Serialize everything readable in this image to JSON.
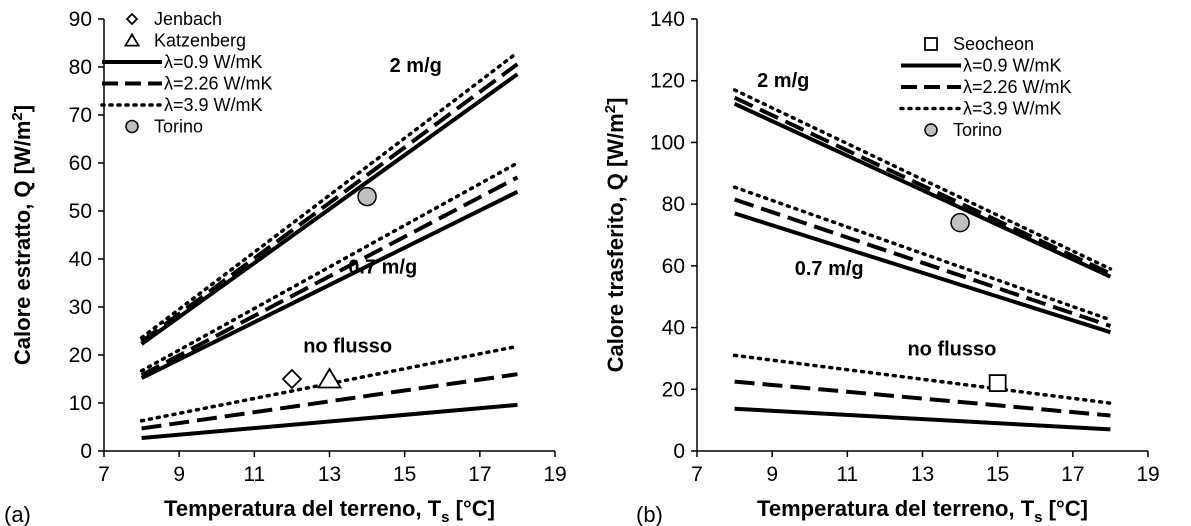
{
  "chart_data": [
    {
      "type": "line",
      "panel_label": "(a)",
      "xlabel": "Temperatura del terreno, T",
      "xlabel_sub": "s",
      "xlabel_unit": " [°C]",
      "ylabel": "Calore estratto, Q [W/m",
      "ylabel_sup": "2",
      "ylabel_end": "]",
      "xlim": [
        7,
        19
      ],
      "ylim": [
        0,
        90
      ],
      "xticks": [
        7,
        9,
        11,
        13,
        15,
        17,
        19
      ],
      "yticks": [
        0,
        10,
        20,
        30,
        40,
        50,
        60,
        70,
        80,
        90
      ],
      "grid": false,
      "legend": {
        "placement": "top-left",
        "entries": [
          {
            "label": "Jenbach",
            "symbol": "diamond"
          },
          {
            "label": "Katzenberg",
            "symbol": "triangle"
          },
          {
            "label": "λ=0.9 W/mK",
            "symbol": "solid"
          },
          {
            "label": "λ=2.26 W/mK",
            "symbol": "dashed"
          },
          {
            "label": "λ=3.9 W/mK",
            "symbol": "dotted"
          },
          {
            "label": "Torino",
            "symbol": "circle"
          }
        ]
      },
      "annotations": [
        {
          "text": "2 m/g",
          "x": 14.6,
          "y": 79
        },
        {
          "text": "0.7 m/g",
          "x": 13.5,
          "y": 37
        },
        {
          "text": "no flusso",
          "x": 12.3,
          "y": 20.5
        }
      ],
      "series": [
        {
          "group": "2 m/g",
          "lambda": "λ=0.9 W/mK",
          "style": "solid",
          "x": [
            8,
            18
          ],
          "y": [
            22.3,
            78.5
          ]
        },
        {
          "group": "2 m/g",
          "lambda": "λ=2.26 W/mK",
          "style": "dashed",
          "x": [
            8,
            18
          ],
          "y": [
            22.8,
            80.6
          ]
        },
        {
          "group": "2 m/g",
          "lambda": "λ=3.9 W/mK",
          "style": "dotted",
          "x": [
            8,
            18
          ],
          "y": [
            23.6,
            83
          ]
        },
        {
          "group": "0.7 m/g",
          "lambda": "λ=0.9 W/mK",
          "style": "solid",
          "x": [
            8,
            18
          ],
          "y": [
            15.2,
            54
          ]
        },
        {
          "group": "0.7 m/g",
          "lambda": "λ=2.26 W/mK",
          "style": "dashed",
          "x": [
            8,
            18
          ],
          "y": [
            15.8,
            57
          ]
        },
        {
          "group": "0.7 m/g",
          "lambda": "λ=3.9 W/mK",
          "style": "dotted",
          "x": [
            8,
            18
          ],
          "y": [
            16.7,
            60
          ]
        },
        {
          "group": "no flusso",
          "lambda": "λ=0.9 W/mK",
          "style": "solid",
          "x": [
            8,
            18
          ],
          "y": [
            2.7,
            9.6
          ]
        },
        {
          "group": "no flusso",
          "lambda": "λ=2.26 W/mK",
          "style": "dashed",
          "x": [
            8,
            18
          ],
          "y": [
            4.7,
            16
          ]
        },
        {
          "group": "no flusso",
          "lambda": "λ=3.9 W/mK",
          "style": "dotted",
          "x": [
            8,
            18
          ],
          "y": [
            6.3,
            21.8
          ]
        }
      ],
      "points": [
        {
          "name": "Jenbach",
          "symbol": "diamond",
          "x": 12,
          "y": 15
        },
        {
          "name": "Katzenberg",
          "symbol": "triangle",
          "x": 13,
          "y": 15
        },
        {
          "name": "Torino",
          "symbol": "circle",
          "x": 14,
          "y": 53
        }
      ]
    },
    {
      "type": "line",
      "panel_label": "(b)",
      "xlabel": "Temperatura del terreno, T",
      "xlabel_sub": "s",
      "xlabel_unit": " [°C]",
      "ylabel": "Calore trasferito, Q [W/m",
      "ylabel_sup": "2",
      "ylabel_end": "]",
      "xlim": [
        7,
        19
      ],
      "ylim": [
        0,
        140
      ],
      "xticks": [
        7,
        9,
        11,
        13,
        15,
        17,
        19
      ],
      "yticks": [
        0,
        20,
        40,
        60,
        80,
        100,
        120,
        140
      ],
      "grid": false,
      "legend": {
        "placement": "top-right",
        "entries": [
          {
            "label": "Seocheon",
            "symbol": "square"
          },
          {
            "label": "λ=0.9 W/mK",
            "symbol": "solid"
          },
          {
            "label": "λ=2.26 W/mK",
            "symbol": "dashed"
          },
          {
            "label": "λ=3.9 W/mK",
            "symbol": "dotted"
          },
          {
            "label": "Torino",
            "symbol": "circle"
          }
        ]
      },
      "annotations": [
        {
          "text": "2 m/g",
          "x": 8.6,
          "y": 118
        },
        {
          "text": "0.7 m/g",
          "x": 9.6,
          "y": 57
        },
        {
          "text": "no flusso",
          "x": 12.6,
          "y": 31
        }
      ],
      "series": [
        {
          "group": "2 m/g",
          "lambda": "λ=0.9 W/mK",
          "style": "solid",
          "x": [
            8,
            18
          ],
          "y": [
            112.5,
            56.5
          ]
        },
        {
          "group": "2 m/g",
          "lambda": "λ=2.26 W/mK",
          "style": "dashed",
          "x": [
            8,
            18
          ],
          "y": [
            114.5,
            57.5
          ]
        },
        {
          "group": "2 m/g",
          "lambda": "λ=3.9 W/mK",
          "style": "dotted",
          "x": [
            8,
            18
          ],
          "y": [
            117,
            59
          ]
        },
        {
          "group": "0.7 m/g",
          "lambda": "λ=0.9 W/mK",
          "style": "solid",
          "x": [
            8,
            18
          ],
          "y": [
            77,
            38.5
          ]
        },
        {
          "group": "0.7 m/g",
          "lambda": "λ=2.26 W/mK",
          "style": "dashed",
          "x": [
            8,
            18
          ],
          "y": [
            81.5,
            40.5
          ]
        },
        {
          "group": "0.7 m/g",
          "lambda": "λ=3.9 W/mK",
          "style": "dotted",
          "x": [
            8,
            18
          ],
          "y": [
            85.5,
            42.5
          ]
        },
        {
          "group": "no flusso",
          "lambda": "λ=0.9 W/mK",
          "style": "solid",
          "x": [
            8,
            18
          ],
          "y": [
            13.7,
            7
          ]
        },
        {
          "group": "no flusso",
          "lambda": "λ=2.26 W/mK",
          "style": "dashed",
          "x": [
            8,
            18
          ],
          "y": [
            22.5,
            11.5
          ]
        },
        {
          "group": "no flusso",
          "lambda": "λ=3.9 W/mK",
          "style": "dotted",
          "x": [
            8,
            18
          ],
          "y": [
            31,
            15.5
          ]
        }
      ],
      "points": [
        {
          "name": "Seocheon",
          "symbol": "square",
          "x": 15,
          "y": 22
        },
        {
          "name": "Torino",
          "symbol": "circle",
          "x": 14,
          "y": 74
        }
      ]
    }
  ]
}
